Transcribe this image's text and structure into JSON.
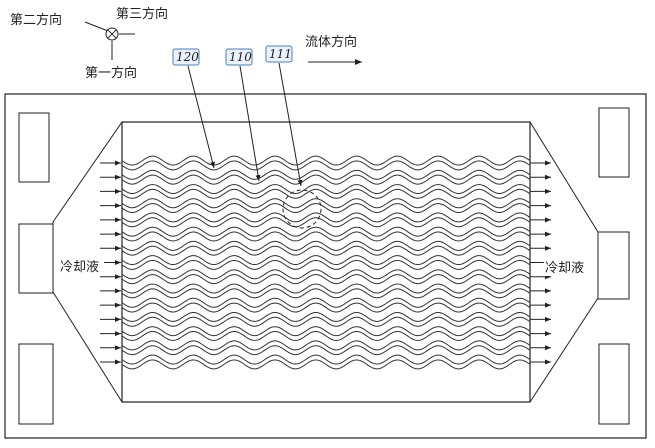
{
  "axes": {
    "second_direction": "第二方向",
    "third_direction": "第三方向",
    "first_direction": "第一方向"
  },
  "flow_direction": "流体方向",
  "refs": {
    "r120": "120",
    "r110": "110",
    "r111": "111"
  },
  "coolant_left": "冷却液",
  "coolant_right": "冷却液",
  "channel_count": 15,
  "wave_periods": 10
}
